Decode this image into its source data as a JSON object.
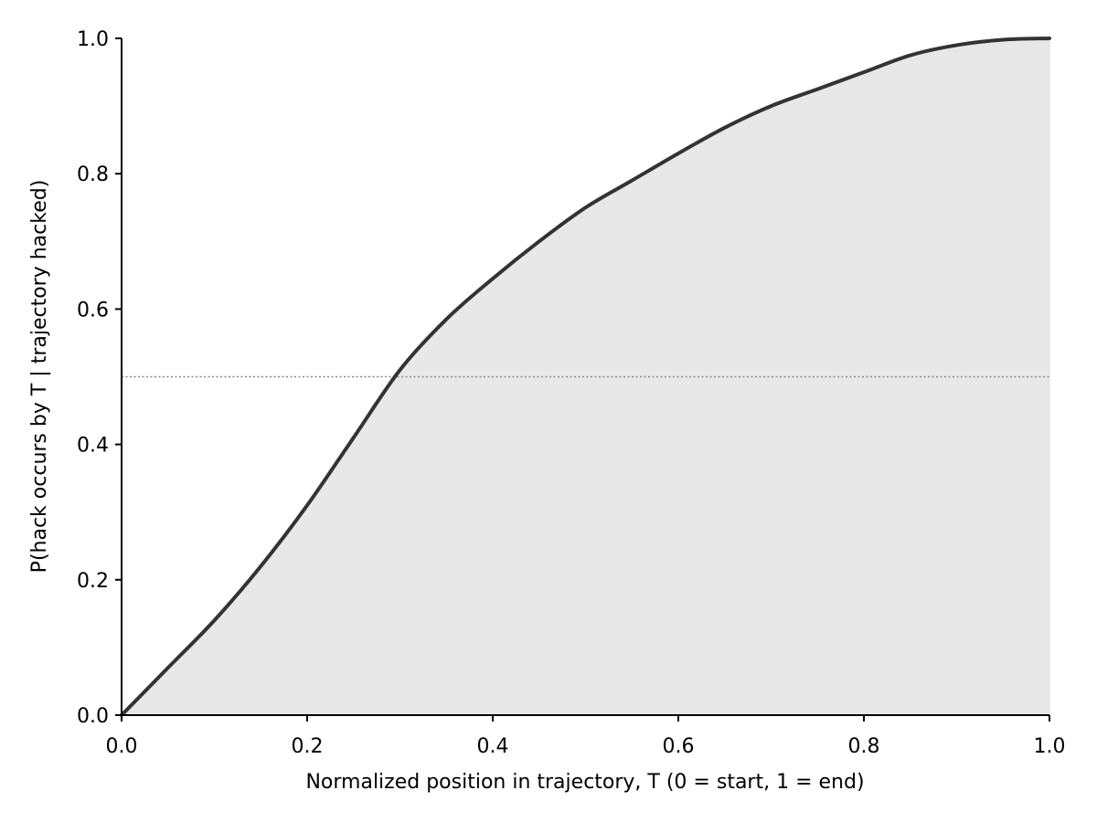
{
  "chart_data": {
    "type": "area",
    "title": "",
    "xlabel": "Normalized position in trajectory, T (0 = start, 1 = end)",
    "ylabel": "P(hack occurs by T  |  trajectory hacked)",
    "xlim": [
      0.0,
      1.0
    ],
    "ylim": [
      0.0,
      1.0
    ],
    "grid": false,
    "legend": "none",
    "x_ticks": [
      "0.0",
      "0.2",
      "0.4",
      "0.6",
      "0.8",
      "1.0"
    ],
    "y_ticks": [
      "0.0",
      "0.2",
      "0.4",
      "0.6",
      "0.8",
      "1.0"
    ],
    "reference_line": {
      "y": 0.5,
      "style": "dotted"
    },
    "series": [
      {
        "x": [
          0.0,
          0.05,
          0.1,
          0.15,
          0.2,
          0.25,
          0.3,
          0.35,
          0.4,
          0.45,
          0.5,
          0.55,
          0.6,
          0.65,
          0.7,
          0.75,
          0.8,
          0.85,
          0.9,
          0.95,
          1.0
        ],
        "y": [
          0.0,
          0.07,
          0.14,
          0.22,
          0.31,
          0.41,
          0.51,
          0.585,
          0.645,
          0.7,
          0.75,
          0.79,
          0.83,
          0.868,
          0.9,
          0.925,
          0.95,
          0.975,
          0.99,
          0.998,
          1.0
        ]
      }
    ],
    "colors": {
      "line": "#333333",
      "fill": "#e8e8e8",
      "reference": "#888888",
      "axis": "#000000"
    }
  }
}
